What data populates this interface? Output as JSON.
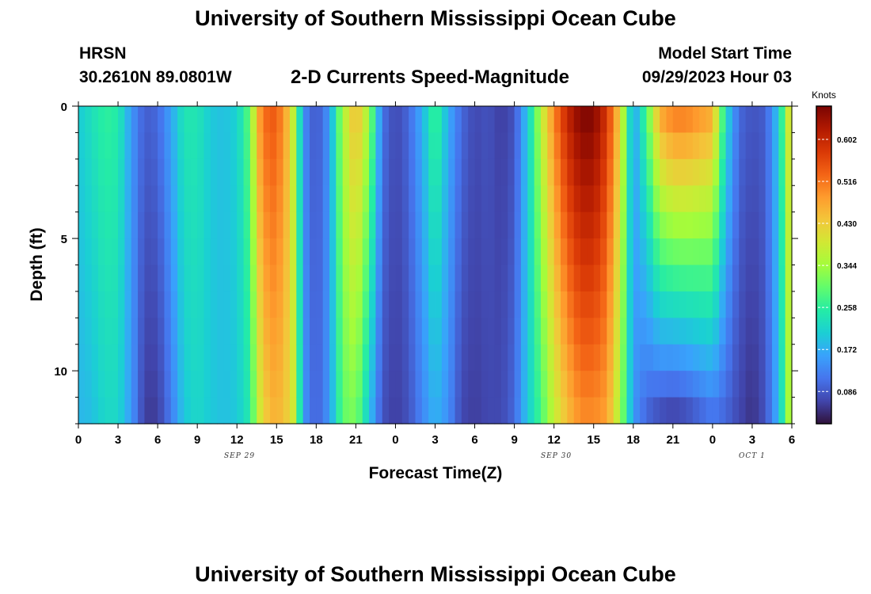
{
  "page": {
    "title": "University of Southern Mississippi Ocean Cube",
    "title_repeat": "University of Southern Mississippi Ocean Cube",
    "station": "HRSN",
    "coordinates": "30.2610N  89.0801W",
    "subtitle": "2-D Currents Speed-Magnitude",
    "model_start_label": "Model Start Time",
    "model_start_value": "09/29/2023 Hour 03"
  },
  "chart_data": {
    "type": "heatmap",
    "title": "2-D Currents Speed-Magnitude",
    "xlabel": "Forecast Time(Z)",
    "ylabel": "Depth (ft)",
    "colorbar_label": "Knots",
    "x_range_hours": [
      0,
      54
    ],
    "y_range_ft": [
      0,
      12
    ],
    "c_range_knots": [
      0.02,
      0.67
    ],
    "x_ticks": [
      {
        "h": 0,
        "label": "0"
      },
      {
        "h": 3,
        "label": "3"
      },
      {
        "h": 6,
        "label": "6"
      },
      {
        "h": 9,
        "label": "9"
      },
      {
        "h": 12,
        "label": "12"
      },
      {
        "h": 15,
        "label": "15"
      },
      {
        "h": 18,
        "label": "18"
      },
      {
        "h": 21,
        "label": "21"
      },
      {
        "h": 24,
        "label": "0"
      },
      {
        "h": 27,
        "label": "3"
      },
      {
        "h": 30,
        "label": "6"
      },
      {
        "h": 33,
        "label": "9"
      },
      {
        "h": 36,
        "label": "12"
      },
      {
        "h": 39,
        "label": "15"
      },
      {
        "h": 42,
        "label": "18"
      },
      {
        "h": 45,
        "label": "21"
      },
      {
        "h": 48,
        "label": "0"
      },
      {
        "h": 51,
        "label": "3"
      },
      {
        "h": 54,
        "label": "6"
      }
    ],
    "date_labels": [
      {
        "h": 12,
        "label": "SEP 29"
      },
      {
        "h": 36,
        "label": "SEP 30"
      },
      {
        "h": 51,
        "label": "OCT 1"
      }
    ],
    "y_ticks": [
      {
        "d": 0,
        "label": "0"
      },
      {
        "d": 5,
        "label": "5"
      },
      {
        "d": 10,
        "label": "10"
      }
    ],
    "colorbar_ticks": [
      "0.602",
      "0.516",
      "0.430",
      "0.344",
      "0.258",
      "0.172",
      "0.086"
    ],
    "colorbar_tick_values": [
      0.602,
      0.516,
      0.43,
      0.344,
      0.258,
      0.172,
      0.086
    ],
    "depth_levels_ft": [
      0.5,
      1.5,
      2.5,
      3.5,
      4.5,
      5.5,
      6.5,
      7.5,
      8.5,
      9.5,
      10.5,
      11.5
    ],
    "surface_speed_keypoints": [
      {
        "h": 0,
        "v": 0.2
      },
      {
        "h": 1,
        "v": 0.23
      },
      {
        "h": 2,
        "v": 0.26
      },
      {
        "h": 3,
        "v": 0.25
      },
      {
        "h": 4,
        "v": 0.15
      },
      {
        "h": 5,
        "v": 0.09
      },
      {
        "h": 6,
        "v": 0.1
      },
      {
        "h": 7,
        "v": 0.16
      },
      {
        "h": 8,
        "v": 0.24
      },
      {
        "h": 9,
        "v": 0.24
      },
      {
        "h": 10,
        "v": 0.2
      },
      {
        "h": 11,
        "v": 0.19
      },
      {
        "h": 12,
        "v": 0.21
      },
      {
        "h": 13,
        "v": 0.3
      },
      {
        "h": 13.6,
        "v": 0.47
      },
      {
        "h": 14.5,
        "v": 0.55
      },
      {
        "h": 15.5,
        "v": 0.5
      },
      {
        "h": 16.4,
        "v": 0.35
      },
      {
        "h": 17,
        "v": 0.14
      },
      {
        "h": 18,
        "v": 0.08
      },
      {
        "h": 19,
        "v": 0.15
      },
      {
        "h": 20,
        "v": 0.35
      },
      {
        "h": 21,
        "v": 0.45
      },
      {
        "h": 22,
        "v": 0.34
      },
      {
        "h": 23,
        "v": 0.11
      },
      {
        "h": 24,
        "v": 0.07
      },
      {
        "h": 25,
        "v": 0.1
      },
      {
        "h": 26,
        "v": 0.17
      },
      {
        "h": 27,
        "v": 0.28
      },
      {
        "h": 28,
        "v": 0.17
      },
      {
        "h": 29,
        "v": 0.1
      },
      {
        "h": 30,
        "v": 0.07
      },
      {
        "h": 31,
        "v": 0.08
      },
      {
        "h": 32,
        "v": 0.06
      },
      {
        "h": 33,
        "v": 0.08
      },
      {
        "h": 34,
        "v": 0.2
      },
      {
        "h": 35,
        "v": 0.36
      },
      {
        "h": 36,
        "v": 0.5
      },
      {
        "h": 37,
        "v": 0.6
      },
      {
        "h": 38,
        "v": 0.66
      },
      {
        "h": 39,
        "v": 0.66
      },
      {
        "h": 40,
        "v": 0.58
      },
      {
        "h": 41,
        "v": 0.42
      },
      {
        "h": 42,
        "v": 0.15
      },
      {
        "h": 43,
        "v": 0.28
      },
      {
        "h": 44,
        "v": 0.46
      },
      {
        "h": 45,
        "v": 0.5
      },
      {
        "h": 46,
        "v": 0.5
      },
      {
        "h": 47,
        "v": 0.48
      },
      {
        "h": 48,
        "v": 0.46
      },
      {
        "h": 49,
        "v": 0.22
      },
      {
        "h": 50,
        "v": 0.1
      },
      {
        "h": 51,
        "v": 0.08
      },
      {
        "h": 52,
        "v": 0.09
      },
      {
        "h": 53,
        "v": 0.2
      },
      {
        "h": 54,
        "v": 0.45
      }
    ],
    "bottom_speed_keypoints": [
      {
        "h": 0,
        "v": 0.18
      },
      {
        "h": 1,
        "v": 0.19
      },
      {
        "h": 2,
        "v": 0.22
      },
      {
        "h": 3,
        "v": 0.22
      },
      {
        "h": 4,
        "v": 0.15
      },
      {
        "h": 5,
        "v": 0.06
      },
      {
        "h": 6,
        "v": 0.06
      },
      {
        "h": 7,
        "v": 0.12
      },
      {
        "h": 8,
        "v": 0.2
      },
      {
        "h": 9,
        "v": 0.22
      },
      {
        "h": 10,
        "v": 0.2
      },
      {
        "h": 11,
        "v": 0.19
      },
      {
        "h": 12,
        "v": 0.2
      },
      {
        "h": 13,
        "v": 0.25
      },
      {
        "h": 13.6,
        "v": 0.38
      },
      {
        "h": 14.5,
        "v": 0.46
      },
      {
        "h": 15.5,
        "v": 0.45
      },
      {
        "h": 16.4,
        "v": 0.38
      },
      {
        "h": 17,
        "v": 0.15
      },
      {
        "h": 18,
        "v": 0.09
      },
      {
        "h": 19,
        "v": 0.15
      },
      {
        "h": 20,
        "v": 0.3
      },
      {
        "h": 21,
        "v": 0.32
      },
      {
        "h": 22,
        "v": 0.2
      },
      {
        "h": 23,
        "v": 0.08
      },
      {
        "h": 24,
        "v": 0.06
      },
      {
        "h": 25,
        "v": 0.08
      },
      {
        "h": 26,
        "v": 0.13
      },
      {
        "h": 27,
        "v": 0.18
      },
      {
        "h": 28,
        "v": 0.14
      },
      {
        "h": 29,
        "v": 0.07
      },
      {
        "h": 30,
        "v": 0.06
      },
      {
        "h": 31,
        "v": 0.07
      },
      {
        "h": 32,
        "v": 0.07
      },
      {
        "h": 33,
        "v": 0.1
      },
      {
        "h": 34,
        "v": 0.2
      },
      {
        "h": 35,
        "v": 0.28
      },
      {
        "h": 36,
        "v": 0.38
      },
      {
        "h": 37,
        "v": 0.45
      },
      {
        "h": 38,
        "v": 0.5
      },
      {
        "h": 39,
        "v": 0.5
      },
      {
        "h": 40,
        "v": 0.48
      },
      {
        "h": 41,
        "v": 0.35
      },
      {
        "h": 42,
        "v": 0.15
      },
      {
        "h": 43,
        "v": 0.1
      },
      {
        "h": 44,
        "v": 0.08
      },
      {
        "h": 45,
        "v": 0.07
      },
      {
        "h": 46,
        "v": 0.08
      },
      {
        "h": 47,
        "v": 0.1
      },
      {
        "h": 48,
        "v": 0.12
      },
      {
        "h": 49,
        "v": 0.1
      },
      {
        "h": 50,
        "v": 0.07
      },
      {
        "h": 51,
        "v": 0.05
      },
      {
        "h": 52,
        "v": 0.08
      },
      {
        "h": 53,
        "v": 0.18
      },
      {
        "h": 54,
        "v": 0.4
      }
    ]
  },
  "colors": {
    "colormap": [
      "#30123b",
      "#4145ab",
      "#4675ed",
      "#39a2fc",
      "#1bcfd4",
      "#24eca6",
      "#61fc6c",
      "#a4fc3b",
      "#d1e834",
      "#f3c63a",
      "#fe9b2d",
      "#f36315",
      "#d93806",
      "#b11901",
      "#7a0402"
    ]
  }
}
